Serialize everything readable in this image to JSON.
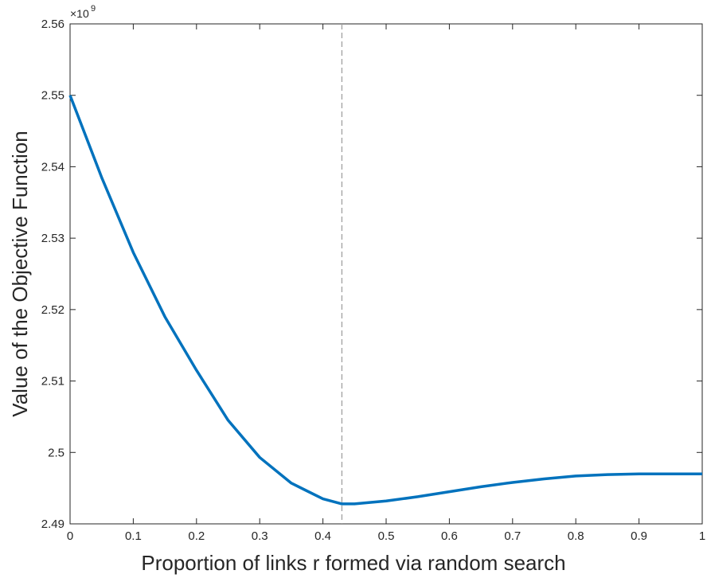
{
  "chart_data": {
    "type": "line",
    "x_label": "Proportion of links r formed via random search",
    "y_label": "Value of the Objective Function",
    "y_scale_base": "×10",
    "y_scale_power": "9",
    "x": [
      0,
      0.05,
      0.1,
      0.15,
      0.2,
      0.25,
      0.3,
      0.35,
      0.4,
      0.43,
      0.45,
      0.5,
      0.55,
      0.6,
      0.65,
      0.7,
      0.75,
      0.8,
      0.85,
      0.9,
      0.95,
      1
    ],
    "series": [
      {
        "color": "#0072bd",
        "values": [
          2.55,
          2.5385,
          2.528,
          2.519,
          2.5115,
          2.5045,
          2.4993,
          2.4957,
          2.4935,
          2.4928,
          2.4928,
          2.4932,
          2.4938,
          2.4945,
          2.4952,
          2.4958,
          2.4963,
          2.4967,
          2.4969,
          2.497,
          2.497,
          2.497
        ]
      }
    ],
    "vline": 0.43,
    "vline_color": "#a0a0a0",
    "xlim": [
      0,
      1
    ],
    "xticks": [
      0,
      0.1,
      0.2,
      0.3,
      0.4,
      0.5,
      0.6,
      0.7,
      0.8,
      0.9,
      1
    ],
    "ylim": [
      2.49,
      2.56
    ],
    "yticks": [
      2.49,
      2.5,
      2.51,
      2.52,
      2.53,
      2.54,
      2.55,
      2.56
    ]
  }
}
